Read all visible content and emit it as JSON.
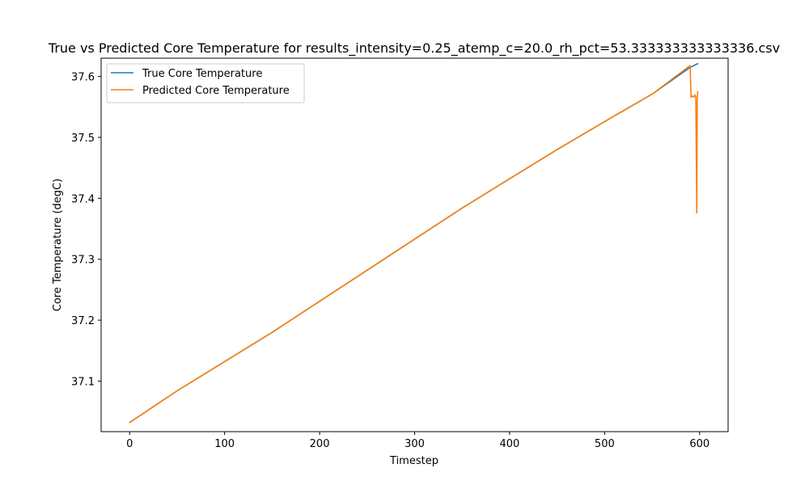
{
  "chart_data": {
    "type": "line",
    "title": "True vs Predicted Core Temperature for results_intensity=0.25_atemp_c=20.0_rh_pct=53.333333333333336.csv",
    "xlabel": "Timestep",
    "ylabel": "Core Temperature (degC)",
    "xlim": [
      -30,
      630
    ],
    "ylim": [
      37.017,
      37.63
    ],
    "x_ticks": [
      0,
      100,
      200,
      300,
      400,
      500,
      600
    ],
    "x_tick_labels": [
      "0",
      "100",
      "200",
      "300",
      "400",
      "500",
      "600"
    ],
    "y_ticks": [
      37.1,
      37.2,
      37.3,
      37.4,
      37.5,
      37.6
    ],
    "y_tick_labels": [
      "37.1",
      "37.2",
      "37.3",
      "37.4",
      "37.5",
      "37.6"
    ],
    "grid": false,
    "legend_position": "top-left",
    "series": [
      {
        "name": "True Core Temperature",
        "color": "#1f77b4",
        "x": [
          0,
          25,
          50,
          75,
          100,
          150,
          200,
          250,
          300,
          350,
          400,
          450,
          500,
          550,
          590,
          598
        ],
        "y": [
          37.032,
          37.058,
          37.084,
          37.108,
          37.132,
          37.18,
          37.231,
          37.282,
          37.333,
          37.384,
          37.432,
          37.48,
          37.526,
          37.571,
          37.615,
          37.621
        ]
      },
      {
        "name": "Predicted Core Temperature",
        "color": "#ff7f0e",
        "x": [
          0,
          25,
          50,
          75,
          100,
          150,
          200,
          250,
          300,
          350,
          400,
          450,
          500,
          550,
          590,
          591,
          592,
          594,
          595,
          596,
          597,
          597.5,
          598
        ],
        "y": [
          37.032,
          37.058,
          37.084,
          37.108,
          37.132,
          37.18,
          37.231,
          37.282,
          37.333,
          37.384,
          37.432,
          37.48,
          37.526,
          37.571,
          37.618,
          37.566,
          37.568,
          37.566,
          37.57,
          37.566,
          37.376,
          37.56,
          37.575
        ]
      }
    ]
  }
}
